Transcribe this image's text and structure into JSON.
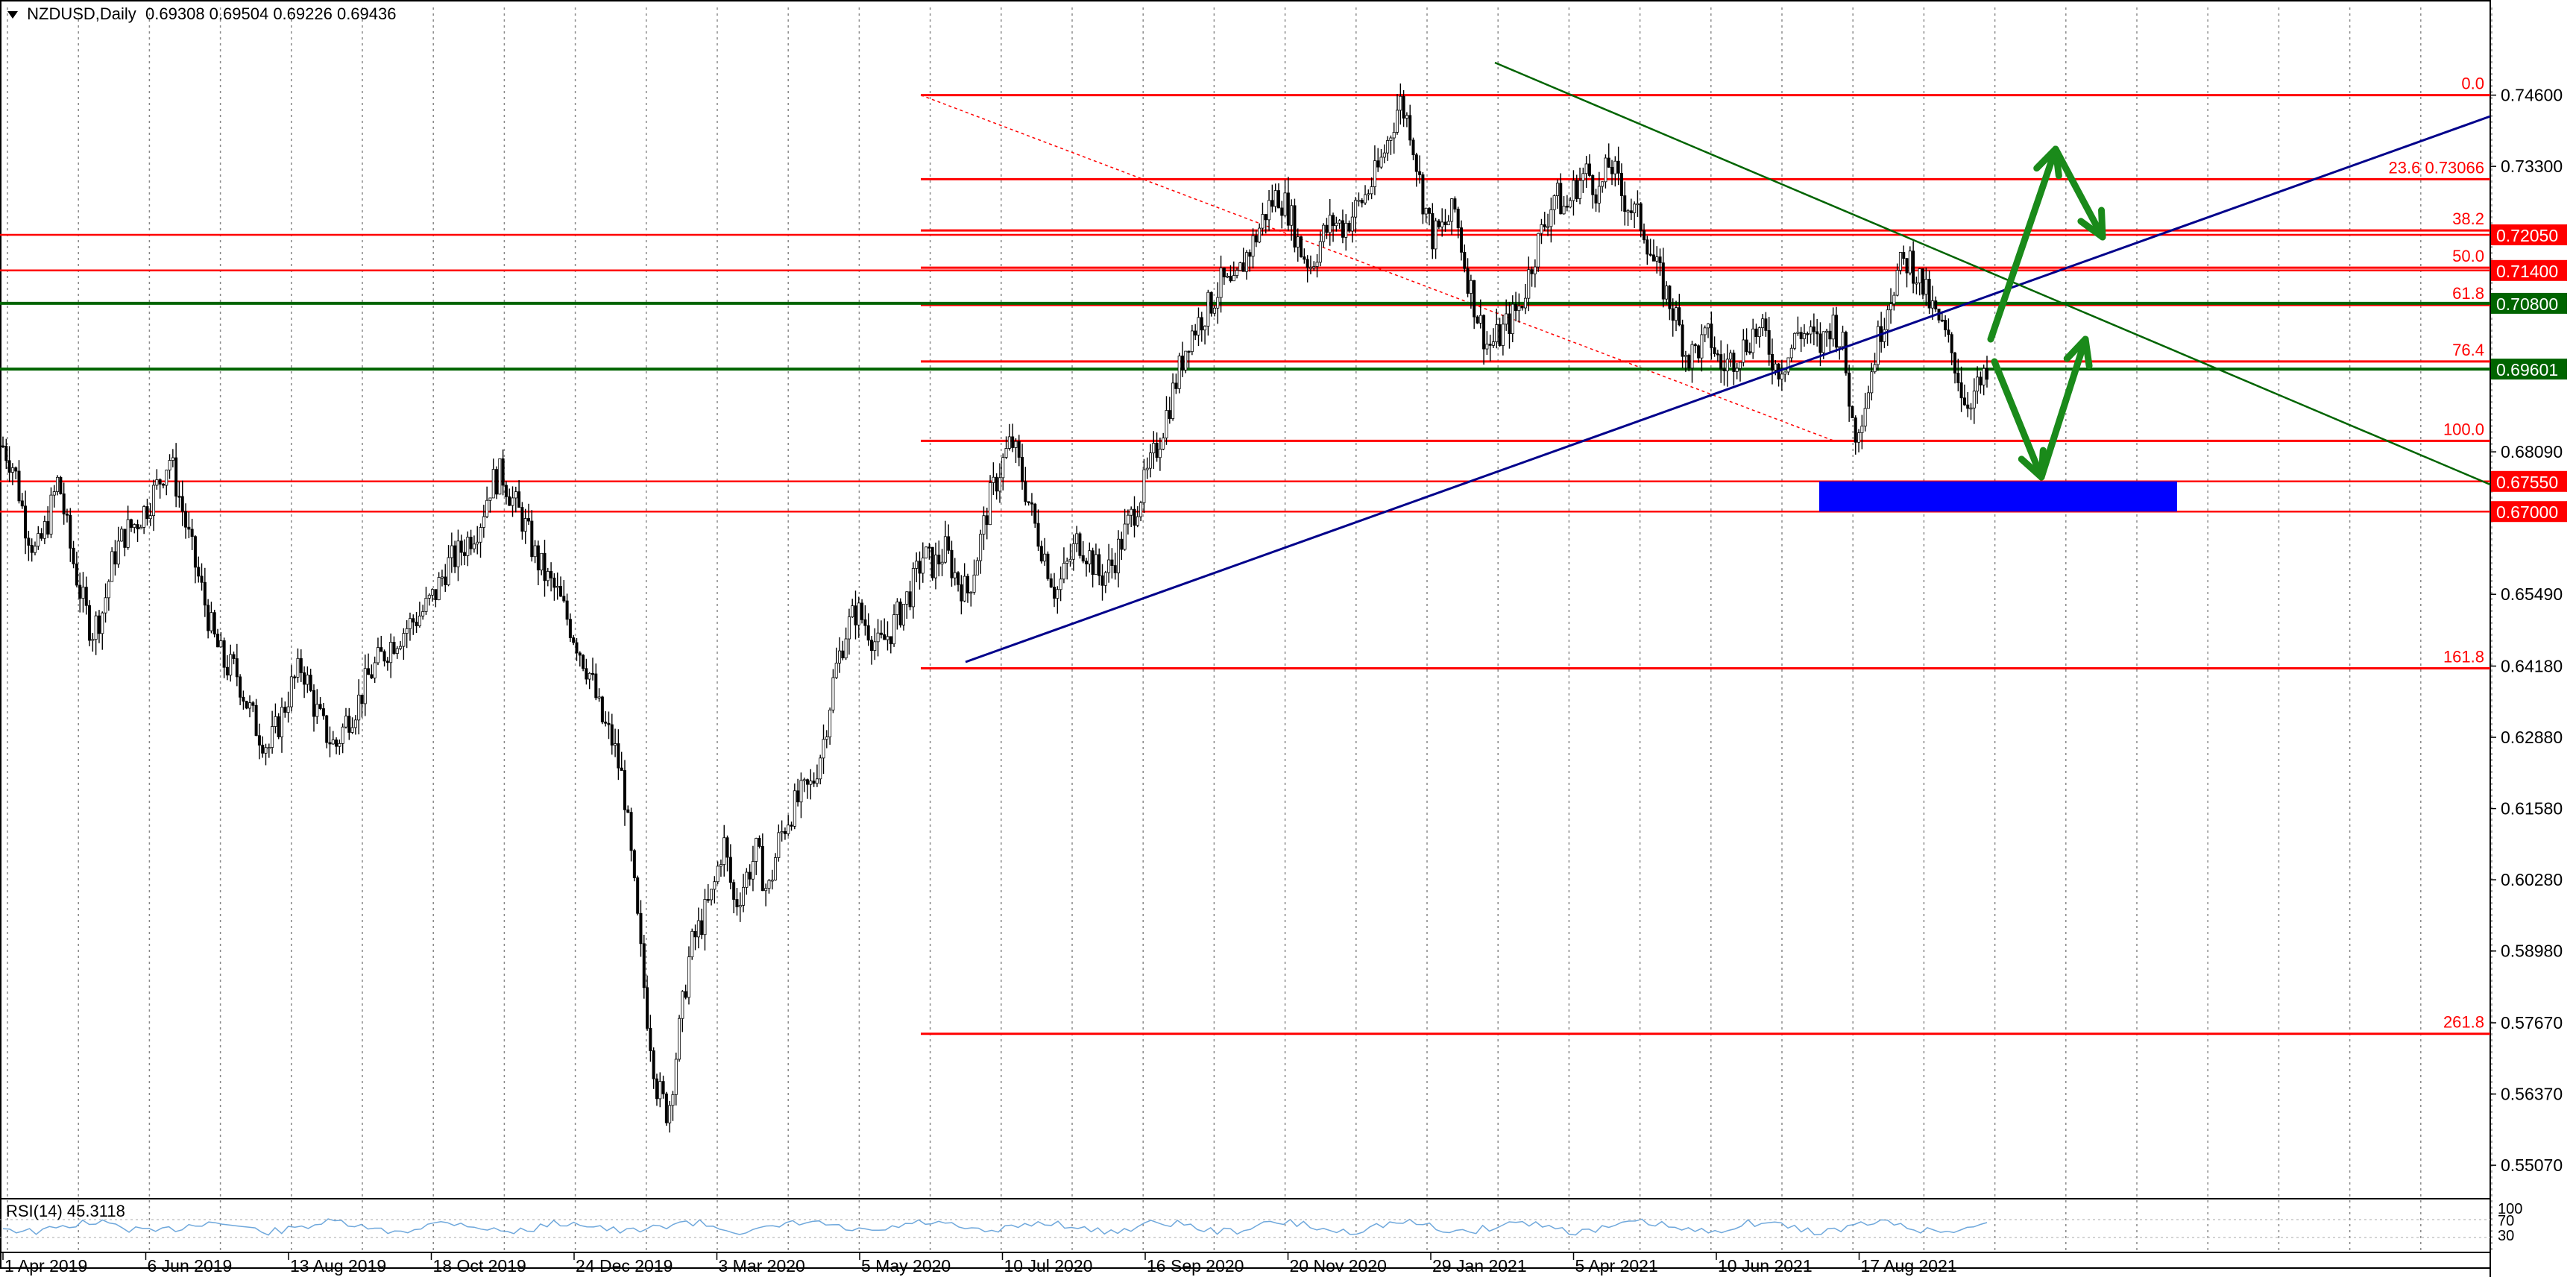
{
  "header": {
    "symbol": "NZDUSD,Daily",
    "ohlc": "0.69308 0.69504 0.69226 0.69436"
  },
  "rsi": {
    "label": "RSI(14) 45.3118",
    "levels": [
      "100",
      "70",
      "30"
    ]
  },
  "colors": {
    "fib": "#ff0000",
    "support": "#006400",
    "trend_up": "#00008b",
    "trend_down": "#006400",
    "arrow": "#1a8a1a",
    "zone": "#0000ff",
    "candle": "#000000",
    "grid": "#888888"
  },
  "chart_data": {
    "type": "candlestick",
    "title": "",
    "ylim": [
      0.545,
      0.762
    ],
    "y_ticks": [
      "0.74600",
      "0.73300",
      "0.72050",
      "0.71400",
      "0.70800",
      "0.69601",
      "0.68090",
      "0.67550",
      "0.67000",
      "0.65490",
      "0.64180",
      "0.62880",
      "0.61580",
      "0.60280",
      "0.58980",
      "0.57670",
      "0.56370",
      "0.55070"
    ],
    "x_ticks": [
      "1 Apr 2019",
      "6 Jun 2019",
      "13 Aug 2019",
      "18 Oct 2019",
      "24 Dec 2019",
      "3 Mar 2020",
      "5 May 2020",
      "10 Jul 2020",
      "16 Sep 2020",
      "20 Nov 2020",
      "29 Jan 2021",
      "5 Apr 2021",
      "10 Jun 2021",
      "17 Aug 2021"
    ],
    "price_path": [
      0.682,
      0.678,
      0.668,
      0.662,
      0.668,
      0.676,
      0.664,
      0.655,
      0.648,
      0.652,
      0.662,
      0.666,
      0.668,
      0.671,
      0.675,
      0.68,
      0.672,
      0.663,
      0.655,
      0.647,
      0.642,
      0.641,
      0.635,
      0.63,
      0.627,
      0.632,
      0.638,
      0.642,
      0.635,
      0.63,
      0.627,
      0.632,
      0.635,
      0.64,
      0.643,
      0.646,
      0.648,
      0.65,
      0.652,
      0.655,
      0.66,
      0.662,
      0.665,
      0.668,
      0.675,
      0.677,
      0.672,
      0.668,
      0.662,
      0.658,
      0.655,
      0.65,
      0.645,
      0.64,
      0.632,
      0.628,
      0.62,
      0.6,
      0.58,
      0.565,
      0.56,
      0.575,
      0.59,
      0.595,
      0.6,
      0.61,
      0.598,
      0.603,
      0.608,
      0.6,
      0.61,
      0.615,
      0.618,
      0.62,
      0.628,
      0.64,
      0.648,
      0.652,
      0.649,
      0.645,
      0.648,
      0.652,
      0.656,
      0.662,
      0.66,
      0.663,
      0.658,
      0.655,
      0.663,
      0.672,
      0.678,
      0.683,
      0.676,
      0.668,
      0.662,
      0.655,
      0.66,
      0.665,
      0.662,
      0.658,
      0.66,
      0.665,
      0.67,
      0.675,
      0.681,
      0.688,
      0.695,
      0.702,
      0.705,
      0.708,
      0.712,
      0.71,
      0.716,
      0.72,
      0.725,
      0.728,
      0.725,
      0.718,
      0.715,
      0.72,
      0.723,
      0.722,
      0.725,
      0.728,
      0.732,
      0.738,
      0.745,
      0.74,
      0.728,
      0.72,
      0.722,
      0.725,
      0.714,
      0.706,
      0.7,
      0.702,
      0.705,
      0.708,
      0.716,
      0.722,
      0.728,
      0.725,
      0.73,
      0.732,
      0.728,
      0.734,
      0.728,
      0.725,
      0.722,
      0.715,
      0.71,
      0.705,
      0.698,
      0.7,
      0.702,
      0.696,
      0.698,
      0.7,
      0.703,
      0.702,
      0.696,
      0.698,
      0.703,
      0.702,
      0.7,
      0.705,
      0.7,
      0.684,
      0.69,
      0.7,
      0.708,
      0.714,
      0.716,
      0.712,
      0.707,
      0.703,
      0.698,
      0.69,
      0.692,
      0.694
    ],
    "fib_levels": [
      {
        "label": "0.0",
        "value": 0.746
      },
      {
        "label": "23.6 0.73066",
        "value": 0.73066
      },
      {
        "label": "38.2",
        "value": 0.7213
      },
      {
        "label": "50.0",
        "value": 0.7145
      },
      {
        "label": "61.8",
        "value": 0.7077
      },
      {
        "label": "76.4",
        "value": 0.6974
      },
      {
        "label": "100.0",
        "value": 0.6829
      },
      {
        "label": "161.8",
        "value": 0.6414
      },
      {
        "label": "261.8",
        "value": 0.5747
      }
    ],
    "horizontal_lines": [
      {
        "value": 0.7205,
        "tag": "0.72050",
        "tag_color": "#ff0000"
      },
      {
        "value": 0.714,
        "tag": "0.71400",
        "tag_color": "#ff0000"
      },
      {
        "value": 0.708,
        "tag": "0.70800",
        "tag_color": "#006400"
      },
      {
        "value": 0.696,
        "tag": "0.69601",
        "tag_color": "#006400"
      },
      {
        "value": 0.6755,
        "tag": "0.67550",
        "tag_color": "#ff0000"
      },
      {
        "value": 0.67,
        "tag": "0.67000",
        "tag_color": "#ff0000"
      }
    ]
  }
}
